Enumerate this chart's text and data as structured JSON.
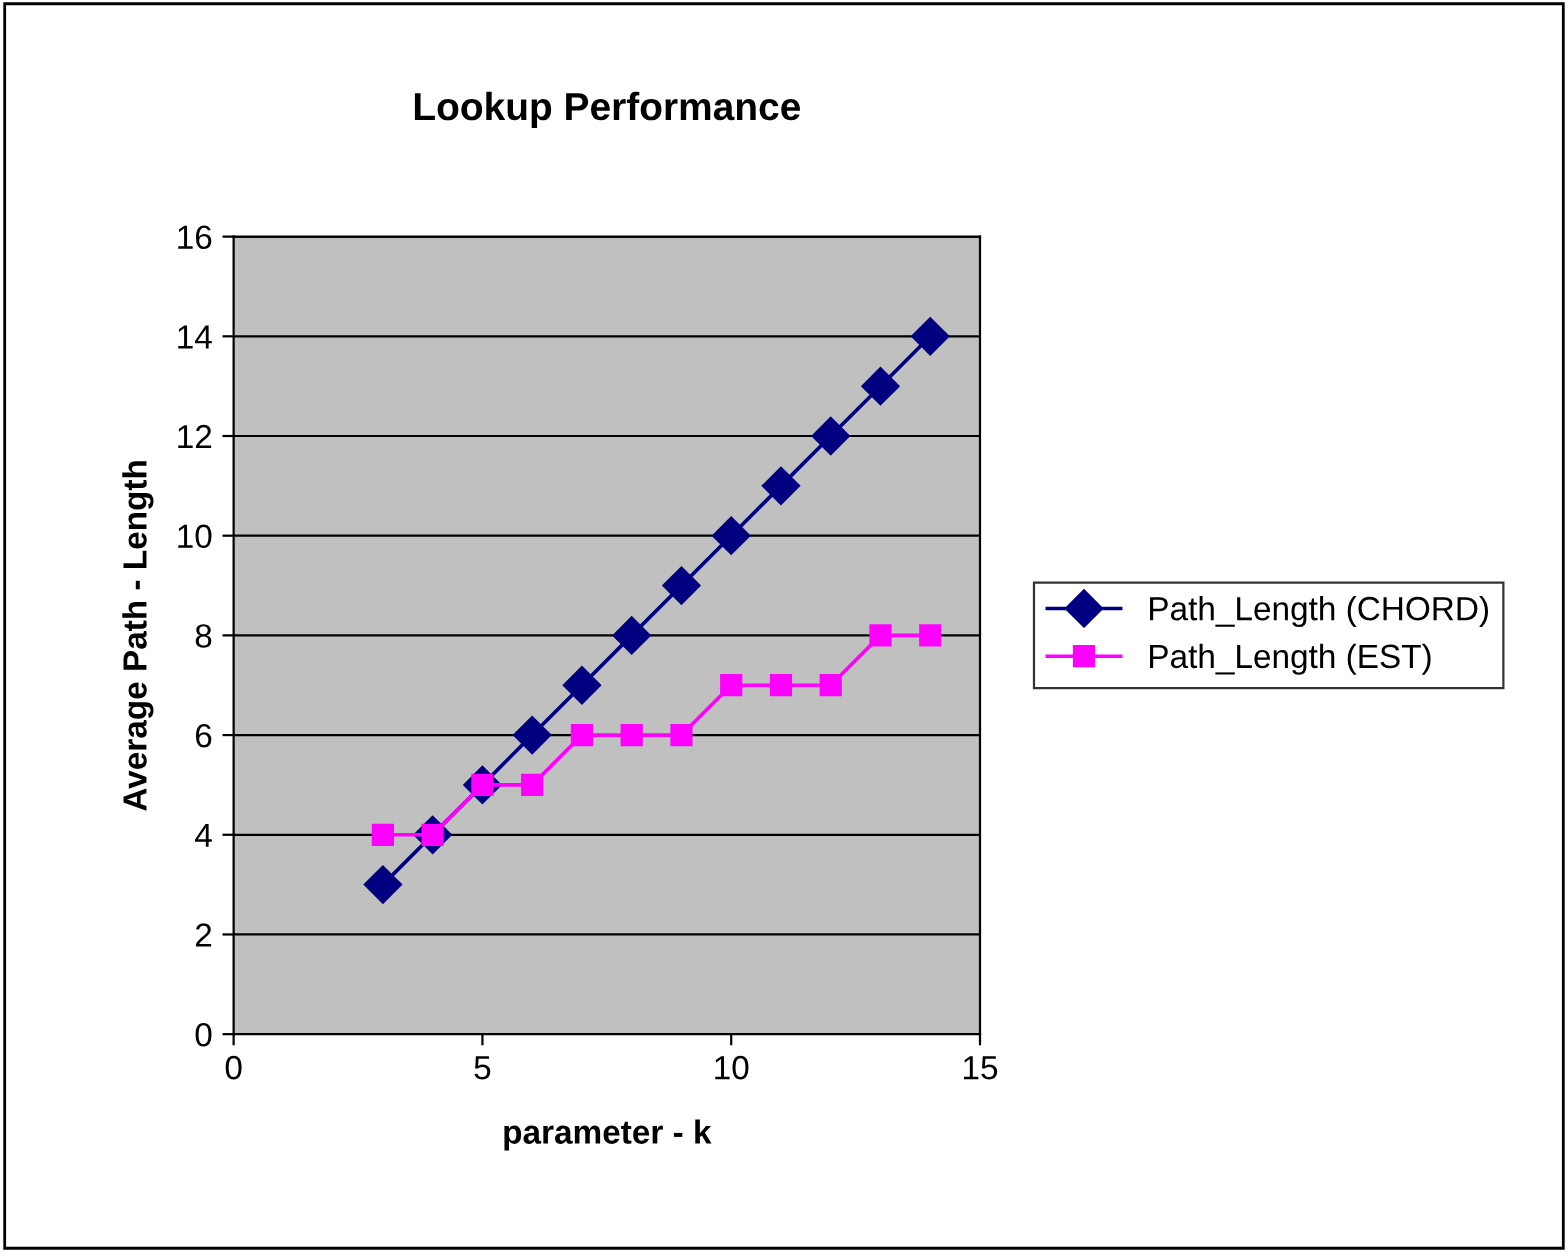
{
  "chart_data": {
    "type": "line",
    "title": "Lookup Performance",
    "xlabel": "parameter - k",
    "ylabel": "Average Path - Length",
    "xlim": [
      0,
      15
    ],
    "xticks": [
      0,
      5,
      10,
      15
    ],
    "ylim": [
      0,
      16
    ],
    "yticks": [
      0,
      2,
      4,
      6,
      8,
      10,
      12,
      14,
      16
    ],
    "grid": "y",
    "legend": "right",
    "series": [
      {
        "name": "Path_Length (CHORD)",
        "color": "#000080",
        "marker": "diamond",
        "x": [
          3,
          4,
          5,
          6,
          7,
          8,
          9,
          10,
          11,
          12,
          13,
          14
        ],
        "values": [
          3,
          4,
          5,
          6,
          7,
          8,
          9,
          10,
          11,
          12,
          13,
          14
        ]
      },
      {
        "name": "Path_Length (EST)",
        "color": "#ff00ff",
        "marker": "square",
        "x": [
          3,
          4,
          5,
          6,
          7,
          8,
          9,
          10,
          11,
          12,
          13,
          14
        ],
        "values": [
          4,
          4,
          5,
          5,
          6,
          6,
          6,
          7,
          7,
          7,
          8,
          8
        ]
      }
    ]
  }
}
